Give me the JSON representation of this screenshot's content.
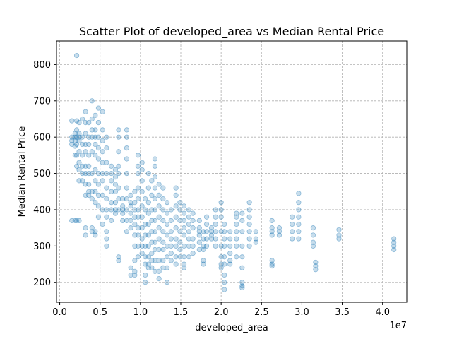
{
  "chart_data": {
    "type": "scatter",
    "title": "Scatter Plot of developed_area vs Median Rental Price",
    "xlabel": "developed_area",
    "ylabel": "Median Rental Price",
    "x_multiplier_label": "1e7",
    "xlim": [
      -0.4,
      43.0
    ],
    "ylim": [
      145,
      865
    ],
    "x_ticks": [
      0,
      5,
      10,
      15,
      20,
      25,
      30,
      35,
      40
    ],
    "x_tick_labels": [
      "0.0",
      "0.5",
      "1.0",
      "1.5",
      "2.0",
      "2.5",
      "3.0",
      "3.5",
      "4.0"
    ],
    "y_ticks": [
      200,
      300,
      400,
      500,
      600,
      700,
      800
    ],
    "y_tick_labels": [
      "200",
      "300",
      "400",
      "500",
      "600",
      "700",
      "800"
    ],
    "grid": true,
    "marker_color": "#1f77b4",
    "marker_alpha": 0.25,
    "columns": [
      {
        "x": 1.5,
        "y": [
          600,
          590,
          580,
          645,
          370
        ]
      },
      {
        "x": 1.9,
        "y": [
          600,
          610,
          590,
          575,
          550,
          370
        ]
      },
      {
        "x": 2.1,
        "y": [
          825,
          645,
          620,
          600,
          580,
          550,
          520,
          370
        ]
      },
      {
        "x": 2.4,
        "y": [
          640,
          610,
          600,
          590,
          560,
          530,
          510,
          480,
          370
        ]
      },
      {
        "x": 2.8,
        "y": [
          650,
          600,
          580,
          550,
          520,
          500,
          480
        ]
      },
      {
        "x": 3.2,
        "y": [
          670,
          640,
          610,
          580,
          560,
          520,
          500,
          470,
          440,
          350,
          330
        ]
      },
      {
        "x": 3.6,
        "y": [
          640,
          600,
          580,
          550,
          520,
          500,
          470,
          450,
          440
        ]
      },
      {
        "x": 4.0,
        "y": [
          700,
          650,
          620,
          600,
          560,
          500,
          450,
          430,
          350,
          340
        ]
      },
      {
        "x": 4.4,
        "y": [
          660,
          620,
          600,
          580,
          550,
          510,
          480,
          450,
          420,
          340,
          330
        ]
      },
      {
        "x": 4.8,
        "y": [
          680,
          640,
          600,
          570,
          540,
          500,
          470,
          440,
          410,
          380
        ]
      },
      {
        "x": 5.3,
        "y": [
          670,
          620,
          590,
          560,
          530,
          500,
          480,
          440,
          400,
          360
        ]
      },
      {
        "x": 5.8,
        "y": [
          600,
          570,
          530,
          500,
          460,
          430,
          400,
          380,
          340,
          320,
          300
        ]
      },
      {
        "x": 6.4,
        "y": [
          520,
          500,
          480,
          450,
          420,
          400,
          370
        ]
      },
      {
        "x": 6.9,
        "y": [
          510,
          490,
          470,
          450,
          420,
          400,
          390
        ]
      },
      {
        "x": 7.3,
        "y": [
          620,
          600,
          560,
          520,
          500,
          460,
          430,
          400,
          270,
          260
        ]
      },
      {
        "x": 7.8,
        "y": [
          430,
          410,
          400,
          390,
          370
        ]
      },
      {
        "x": 8.3,
        "y": [
          620,
          600,
          570,
          540,
          500,
          460,
          430,
          400,
          370,
          340
        ]
      },
      {
        "x": 8.8,
        "y": [
          440,
          420,
          410,
          390,
          370,
          350,
          240,
          220
        ]
      },
      {
        "x": 9.3,
        "y": [
          450,
          420,
          400,
          380,
          360,
          330,
          300,
          260,
          230,
          220
        ]
      },
      {
        "x": 9.7,
        "y": [
          550,
          520,
          500,
          460,
          430,
          400,
          380,
          350,
          330,
          300,
          270
        ]
      },
      {
        "x": 10.2,
        "y": [
          530,
          510,
          480,
          450,
          410,
          380,
          350,
          320,
          300,
          280
        ]
      },
      {
        "x": 10.6,
        "y": [
          430,
          400,
          360,
          330,
          300,
          270,
          250,
          220,
          200
        ]
      },
      {
        "x": 11.0,
        "y": [
          500,
          460,
          420,
          390,
          360,
          330,
          300,
          270,
          250,
          240
        ]
      },
      {
        "x": 11.4,
        "y": [
          480,
          440,
          400,
          370,
          340,
          310,
          280,
          260,
          240
        ]
      },
      {
        "x": 11.8,
        "y": [
          540,
          520,
          490,
          460,
          430,
          400,
          370,
          340,
          310,
          290,
          260,
          230
        ]
      },
      {
        "x": 12.3,
        "y": [
          470,
          440,
          410,
          380,
          350,
          320,
          290,
          260,
          230,
          210
        ]
      },
      {
        "x": 12.8,
        "y": [
          460,
          430,
          400,
          370,
          340,
          310,
          290,
          260,
          240
        ]
      },
      {
        "x": 13.3,
        "y": [
          420,
          390,
          360,
          330,
          300,
          270,
          240,
          200
        ]
      },
      {
        "x": 13.8,
        "y": [
          400,
          370,
          340,
          320,
          300,
          280,
          260
        ]
      },
      {
        "x": 14.4,
        "y": [
          460,
          440,
          410,
          380,
          350,
          320,
          300,
          270,
          250
        ]
      },
      {
        "x": 14.9,
        "y": [
          420,
          400,
          370,
          340,
          310,
          290,
          270
        ]
      },
      {
        "x": 15.4,
        "y": [
          410,
          390,
          370,
          350,
          330,
          300,
          270,
          250,
          240
        ]
      },
      {
        "x": 16.0,
        "y": [
          400,
          380,
          360,
          340,
          320,
          300,
          270
        ]
      },
      {
        "x": 16.5,
        "y": [
          390,
          370,
          350,
          320,
          300,
          280
        ]
      },
      {
        "x": 17.3,
        "y": [
          370,
          350,
          340,
          330,
          310,
          290
        ]
      },
      {
        "x": 17.8,
        "y": [
          340,
          320,
          300,
          290,
          260,
          250
        ]
      },
      {
        "x": 18.2,
        "y": [
          380,
          360,
          340,
          320,
          300
        ]
      },
      {
        "x": 18.8,
        "y": [
          350,
          340,
          330,
          320
        ]
      },
      {
        "x": 19.3,
        "y": [
          400,
          380,
          360,
          340,
          320,
          300
        ]
      },
      {
        "x": 20.0,
        "y": [
          420,
          400,
          380,
          340,
          300,
          270,
          250,
          240
        ]
      },
      {
        "x": 20.4,
        "y": [
          360,
          340,
          320,
          300,
          270,
          250,
          220,
          200,
          180
        ]
      },
      {
        "x": 21.1,
        "y": [
          340,
          320,
          300,
          280,
          260,
          250
        ]
      },
      {
        "x": 21.9,
        "y": [
          390,
          380,
          360,
          340,
          320,
          300,
          270
        ]
      },
      {
        "x": 22.6,
        "y": [
          390,
          370,
          340,
          300,
          270,
          240,
          200,
          190,
          185
        ]
      },
      {
        "x": 23.5,
        "y": [
          420,
          400,
          380,
          360,
          340,
          320,
          300
        ]
      },
      {
        "x": 24.3,
        "y": [
          340,
          320,
          310
        ]
      },
      {
        "x": 26.3,
        "y": [
          370,
          350,
          340,
          330,
          260,
          250,
          245
        ]
      },
      {
        "x": 27.2,
        "y": [
          350,
          340,
          330
        ]
      },
      {
        "x": 28.8,
        "y": [
          380,
          360,
          340,
          320
        ]
      },
      {
        "x": 29.6,
        "y": [
          445,
          420,
          400,
          380,
          360,
          340,
          320
        ]
      },
      {
        "x": 31.4,
        "y": [
          350,
          330,
          310,
          300
        ]
      },
      {
        "x": 31.7,
        "y": [
          255,
          245,
          235
        ]
      },
      {
        "x": 34.6,
        "y": [
          345,
          330,
          320
        ]
      },
      {
        "x": 41.4,
        "y": [
          320,
          310,
          300,
          290
        ]
      }
    ]
  }
}
